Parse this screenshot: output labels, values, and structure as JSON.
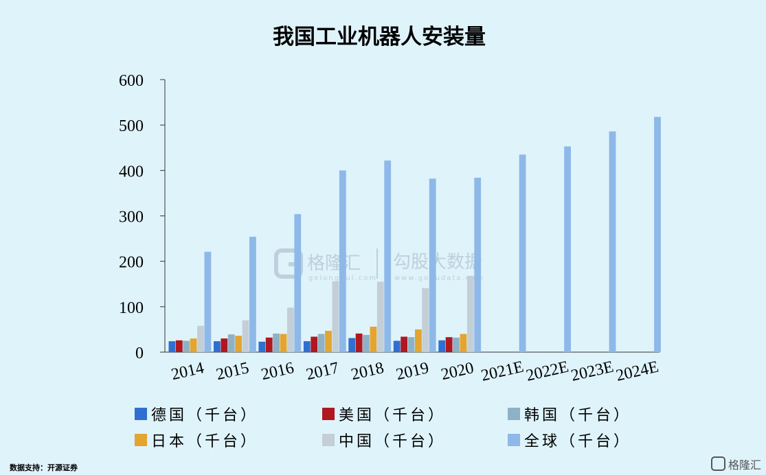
{
  "colors": {
    "background": "#dff3fb",
    "germany": "#2f6fcf",
    "usa": "#b0171f",
    "korea": "#8fb1c6",
    "japan": "#e3a530",
    "china": "#c4ced6",
    "global": "#8eb8e8"
  },
  "chart_data": {
    "type": "bar",
    "title": "我国工业机器人安装量",
    "categories": [
      "2014",
      "2015",
      "2016",
      "2017",
      "2018",
      "2019",
      "2020",
      "2021E",
      "2022E",
      "2023E",
      "2024E"
    ],
    "ylim": [
      0,
      600
    ],
    "yticks": [
      "0",
      "100",
      "200",
      "300",
      "400",
      "500",
      "600"
    ],
    "legend_position": "bottom",
    "series": [
      {
        "name": "德国（千台）",
        "color_key": "germany",
        "values": [
          24,
          24,
          23,
          24,
          31,
          25,
          26,
          null,
          null,
          null,
          null
        ]
      },
      {
        "name": "美国（千台）",
        "color_key": "usa",
        "values": [
          26,
          30,
          32,
          34,
          41,
          34,
          33,
          null,
          null,
          null,
          null
        ]
      },
      {
        "name": "韩国（千台）",
        "color_key": "korea",
        "values": [
          25,
          39,
          41,
          40,
          38,
          33,
          32,
          null,
          null,
          null,
          null
        ]
      },
      {
        "name": "日本（千台）",
        "color_key": "japan",
        "values": [
          30,
          36,
          40,
          47,
          56,
          50,
          40,
          null,
          null,
          null,
          null
        ]
      },
      {
        "name": "中国（千台）",
        "color_key": "china",
        "values": [
          58,
          70,
          98,
          156,
          155,
          141,
          168,
          null,
          null,
          null,
          null
        ]
      },
      {
        "name": "全球（千台）",
        "color_key": "global",
        "values": [
          221,
          254,
          304,
          400,
          422,
          382,
          384,
          435,
          453,
          486,
          518
        ]
      }
    ]
  },
  "watermark": {
    "brand": "格隆汇",
    "brand_url": "gelonghui.com",
    "partner": "勾股大数据",
    "partner_url": "www.gogudata.com"
  },
  "footer": {
    "source": "数据支持：开源证券",
    "corner_brand": "格隆汇"
  }
}
